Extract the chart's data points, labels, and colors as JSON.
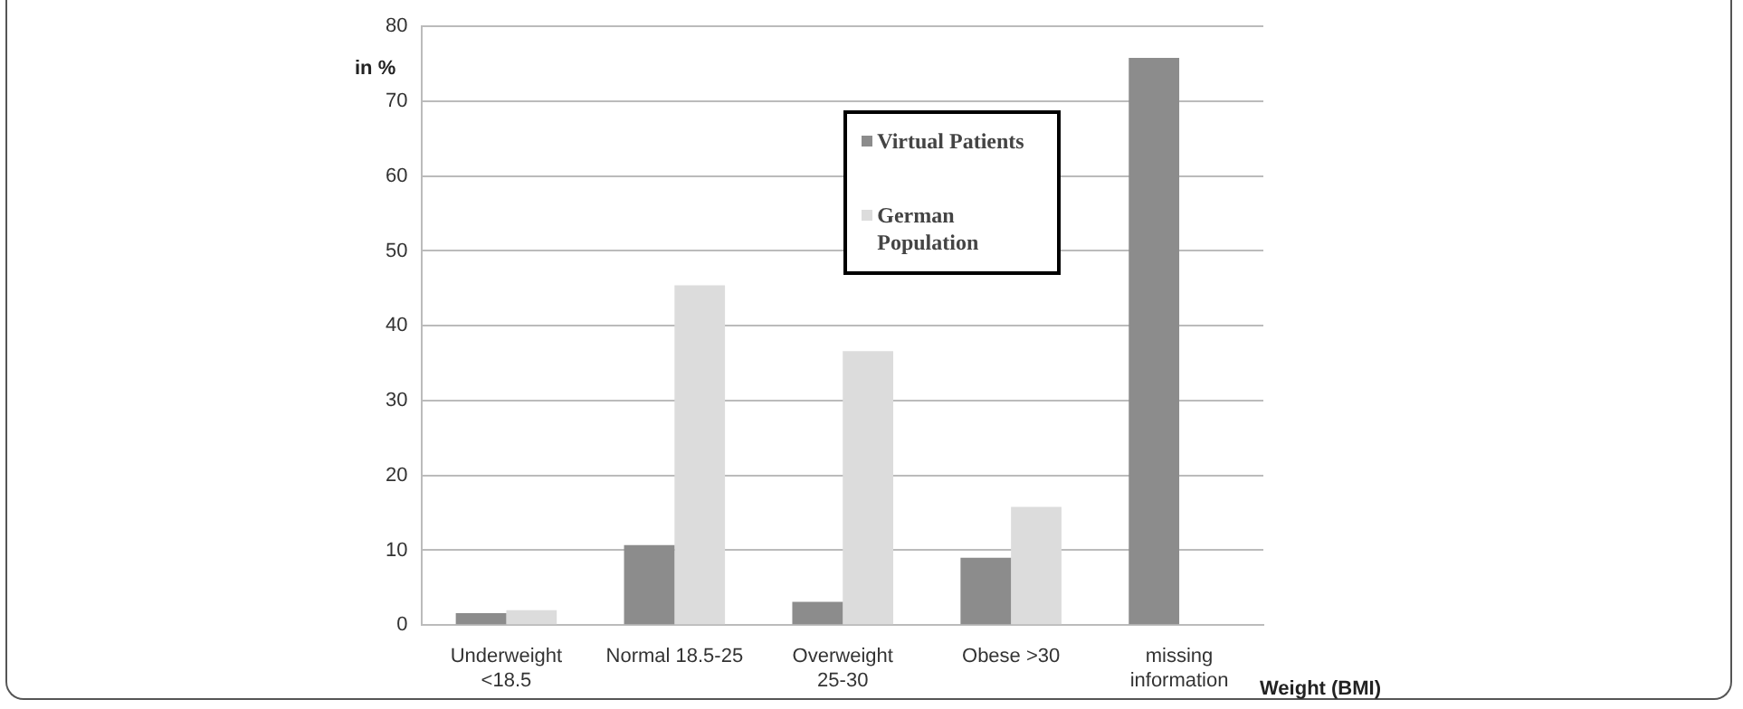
{
  "chart_data": {
    "type": "bar",
    "xlabel": "Weight (BMI)",
    "ylabel": "in %",
    "categories": [
      "Underweight <18.5",
      "Normal 18.5-25",
      "Overweight 25-30",
      "Obese >30",
      "missing information"
    ],
    "series": [
      {
        "name": "Virtual Patients",
        "color": "#8c8c8c",
        "values": [
          1.6,
          10.7,
          3.1,
          9.0,
          75.8
        ]
      },
      {
        "name": "German Population",
        "color": "#dcdcdc",
        "values": [
          2.0,
          45.4,
          36.6,
          15.8,
          null
        ]
      }
    ],
    "ylim": [
      0,
      80
    ],
    "yticks": [
      0,
      10,
      20,
      30,
      40,
      50,
      60,
      70,
      80
    ],
    "grid": "y",
    "legend": "top right"
  }
}
